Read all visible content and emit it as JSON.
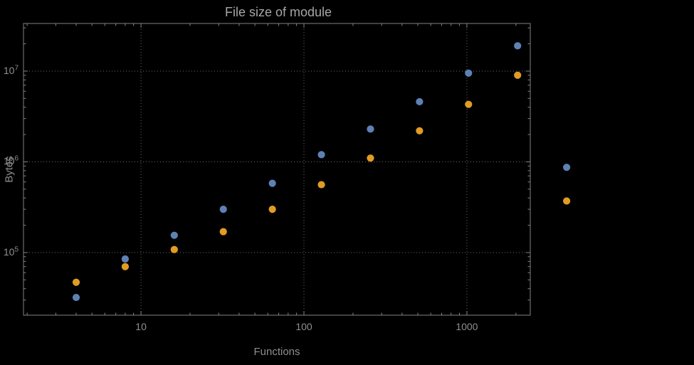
{
  "window": {
    "background": "#000000"
  },
  "chart": {
    "title_color": "#a6a6a6",
    "label_color": "#8f8f8f",
    "tick_label_color": "#8f8f8f",
    "frame_color": "#828282",
    "grid_color": "#6a6a6a"
  },
  "chart_data": {
    "type": "scatter",
    "title": "File size of module",
    "xlabel": "Functions",
    "ylabel": "Bytes",
    "x_scale": "log",
    "y_scale": "log",
    "grid": true,
    "legend": false,
    "xlim": [
      1.9,
      2450
    ],
    "ylim": [
      20400,
      33500000
    ],
    "x_ticks": [
      10,
      100,
      1000
    ],
    "x_tick_labels": [
      "10",
      "100",
      "1000"
    ],
    "y_ticks": [
      100000,
      1000000,
      10000000
    ],
    "y_tick_labels": [
      "10^5",
      "10^6",
      "10^7"
    ],
    "series": [
      {
        "id": "blue",
        "color": "#5E81B5",
        "points": [
          [
            4,
            32000
          ],
          [
            8,
            85000
          ],
          [
            16,
            155000
          ],
          [
            32,
            300000
          ],
          [
            64,
            580000
          ],
          [
            128,
            1200000
          ],
          [
            256,
            2300000
          ],
          [
            512,
            4600000
          ],
          [
            1024,
            9500000
          ],
          [
            2048,
            19000000
          ],
          [
            4096,
            870000
          ]
        ]
      },
      {
        "id": "orange",
        "color": "#E19C24",
        "points": [
          [
            4,
            47000
          ],
          [
            8,
            70000
          ],
          [
            16,
            108000
          ],
          [
            32,
            170000
          ],
          [
            64,
            300000
          ],
          [
            128,
            560000
          ],
          [
            256,
            1100000
          ],
          [
            512,
            2200000
          ],
          [
            1024,
            4300000
          ],
          [
            2048,
            9000000
          ],
          [
            4096,
            370000
          ]
        ]
      }
    ]
  }
}
